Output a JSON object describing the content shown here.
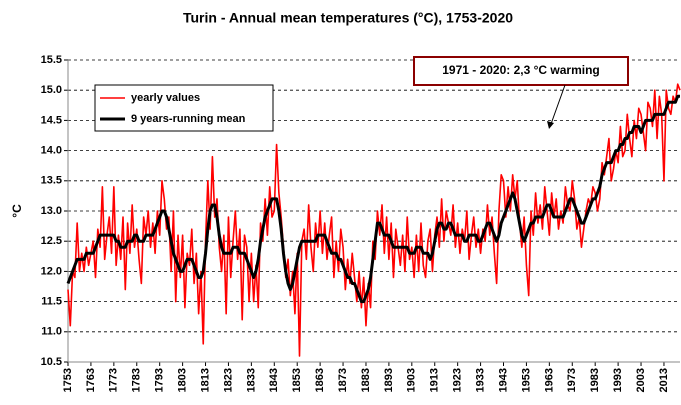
{
  "chart_data": {
    "type": "line",
    "title": "Turin - Annual mean temperatures (°C), 1753-2020",
    "y_label": "°C",
    "annotation": "1971 - 2020: 2,3 °C warming",
    "legend": "top-left",
    "grid": true,
    "xlim": [
      1753,
      2020
    ],
    "ylim": [
      10.5,
      15.5
    ],
    "xticks": [
      1753,
      1763,
      1773,
      1783,
      1793,
      1803,
      1813,
      1823,
      1833,
      1843,
      1853,
      1863,
      1873,
      1883,
      1893,
      1903,
      1913,
      1923,
      1933,
      1943,
      1953,
      1963,
      1973,
      1983,
      1993,
      2003,
      2013
    ],
    "yticks": [
      10.5,
      {
        "value": 11,
        "label": "11.0"
      },
      11.5,
      {
        "value": 12,
        "label": "12.0"
      },
      12.5,
      {
        "value": 13,
        "label": "13.0"
      },
      13.5,
      {
        "value": 14,
        "label": "14.0"
      },
      14.5,
      {
        "value": 15,
        "label": "15.0"
      },
      15.5
    ],
    "x": [
      1753,
      1754,
      1755,
      1756,
      1757,
      1758,
      1759,
      1760,
      1761,
      1762,
      1763,
      1764,
      1765,
      1766,
      1767,
      1768,
      1769,
      1770,
      1771,
      1772,
      1773,
      1774,
      1775,
      1776,
      1777,
      1778,
      1779,
      1780,
      1781,
      1782,
      1783,
      1784,
      1785,
      1786,
      1787,
      1788,
      1789,
      1790,
      1791,
      1792,
      1793,
      1794,
      1795,
      1796,
      1797,
      1798,
      1799,
      1800,
      1801,
      1802,
      1803,
      1804,
      1805,
      1806,
      1807,
      1808,
      1809,
      1810,
      1811,
      1812,
      1813,
      1814,
      1815,
      1816,
      1817,
      1818,
      1819,
      1820,
      1821,
      1822,
      1823,
      1824,
      1825,
      1826,
      1827,
      1828,
      1829,
      1830,
      1831,
      1832,
      1833,
      1834,
      1835,
      1836,
      1837,
      1838,
      1839,
      1840,
      1841,
      1842,
      1843,
      1844,
      1845,
      1846,
      1847,
      1848,
      1849,
      1850,
      1851,
      1852,
      1853,
      1854,
      1855,
      1856,
      1857,
      1858,
      1859,
      1860,
      1861,
      1862,
      1863,
      1864,
      1865,
      1866,
      1867,
      1868,
      1869,
      1870,
      1871,
      1872,
      1873,
      1874,
      1875,
      1876,
      1877,
      1878,
      1879,
      1880,
      1881,
      1882,
      1883,
      1884,
      1885,
      1886,
      1887,
      1888,
      1889,
      1890,
      1891,
      1892,
      1893,
      1894,
      1895,
      1896,
      1897,
      1898,
      1899,
      1900,
      1901,
      1902,
      1903,
      1904,
      1905,
      1906,
      1907,
      1908,
      1909,
      1910,
      1911,
      1912,
      1913,
      1914,
      1915,
      1916,
      1917,
      1918,
      1919,
      1920,
      1921,
      1922,
      1923,
      1924,
      1925,
      1926,
      1927,
      1928,
      1929,
      1930,
      1931,
      1932,
      1933,
      1934,
      1935,
      1936,
      1937,
      1938,
      1939,
      1940,
      1941,
      1942,
      1943,
      1944,
      1945,
      1946,
      1947,
      1948,
      1949,
      1950,
      1951,
      1952,
      1953,
      1954,
      1955,
      1956,
      1957,
      1958,
      1959,
      1960,
      1961,
      1962,
      1963,
      1964,
      1965,
      1966,
      1967,
      1968,
      1969,
      1970,
      1971,
      1972,
      1973,
      1974,
      1975,
      1976,
      1977,
      1978,
      1979,
      1980,
      1981,
      1982,
      1983,
      1984,
      1985,
      1986,
      1987,
      1988,
      1989,
      1990,
      1991,
      1992,
      1993,
      1994,
      1995,
      1996,
      1997,
      1998,
      1999,
      2000,
      2001,
      2002,
      2003,
      2004,
      2005,
      2006,
      2007,
      2008,
      2009,
      2010,
      2011,
      2012,
      2013,
      2014,
      2015,
      2016,
      2017,
      2018,
      2019,
      2020
    ],
    "series": [
      {
        "name": "yearly values",
        "color": "#ff0000",
        "width": 1.6,
        "values": [
          11.7,
          11.1,
          12.0,
          11.9,
          12.8,
          12.0,
          12.3,
          12.0,
          12.4,
          12.1,
          12.3,
          12.5,
          11.9,
          12.7,
          12.4,
          13.4,
          12.2,
          12.6,
          12.9,
          12.3,
          13.4,
          12.1,
          12.6,
          12.2,
          12.9,
          11.7,
          12.8,
          12.3,
          13.1,
          12.4,
          12.7,
          12.2,
          11.8,
          12.9,
          12.6,
          13.0,
          12.4,
          12.8,
          12.3,
          13.0,
          12.6,
          13.5,
          13.2,
          12.7,
          12.9,
          12.0,
          13.0,
          11.5,
          12.6,
          11.9,
          12.6,
          11.4,
          12.3,
          12.1,
          12.7,
          11.8,
          12.3,
          11.3,
          12.0,
          10.8,
          12.5,
          13.5,
          12.7,
          13.9,
          12.9,
          13.2,
          12.4,
          12.0,
          12.6,
          11.3,
          12.9,
          11.9,
          12.5,
          13.0,
          12.2,
          12.7,
          11.2,
          12.6,
          12.4,
          11.5,
          12.3,
          11.5,
          12.1,
          11.4,
          12.8,
          12.5,
          13.2,
          12.6,
          13.4,
          12.9,
          13.0,
          14.1,
          13.3,
          12.9,
          12.4,
          11.9,
          12.2,
          11.6,
          12.0,
          11.3,
          12.3,
          10.6,
          12.5,
          12.7,
          12.2,
          13.1,
          12.4,
          12.0,
          12.8,
          12.4,
          13.0,
          12.3,
          12.8,
          12.2,
          12.6,
          12.9,
          11.9,
          12.5,
          12.0,
          12.7,
          12.4,
          11.7,
          12.2,
          11.8,
          12.3,
          11.9,
          11.5,
          12.0,
          11.4,
          11.9,
          11.1,
          11.8,
          11.4,
          12.5,
          12.2,
          13.0,
          12.6,
          13.1,
          12.3,
          12.9,
          12.2,
          12.8,
          11.9,
          12.7,
          12.4,
          12.1,
          12.6,
          12.0,
          12.9,
          12.2,
          12.4,
          11.9,
          12.6,
          12.0,
          12.8,
          12.1,
          11.9,
          12.5,
          12.7,
          12.0,
          12.6,
          12.9,
          12.4,
          13.2,
          12.5,
          13.0,
          12.8,
          12.6,
          13.1,
          12.4,
          12.8,
          12.3,
          12.7,
          12.5,
          13.0,
          12.2,
          12.6,
          12.9,
          12.4,
          12.7,
          12.3,
          12.7,
          12.5,
          13.1,
          12.6,
          12.9,
          12.3,
          11.8,
          13.0,
          13.6,
          13.5,
          12.9,
          13.4,
          13.0,
          13.6,
          13.2,
          13.5,
          12.8,
          12.4,
          12.9,
          12.1,
          11.6,
          13.0,
          12.6,
          13.3,
          12.8,
          13.1,
          12.7,
          13.4,
          13.0,
          12.6,
          13.3,
          12.9,
          13.2,
          12.7,
          13.0,
          12.8,
          13.4,
          13.1,
          13.0,
          13.5,
          13.2,
          12.7,
          12.9,
          12.4,
          12.7,
          13.0,
          13.2,
          13.1,
          13.4,
          13.3,
          13.0,
          13.2,
          13.8,
          13.6,
          13.9,
          14.2,
          13.5,
          13.7,
          14.0,
          13.8,
          14.4,
          13.9,
          14.0,
          14.6,
          14.2,
          13.9,
          14.5,
          14.2,
          14.7,
          14.6,
          14.3,
          14.0,
          14.8,
          14.7,
          14.4,
          15.0,
          14.2,
          14.9,
          14.6,
          13.5,
          15.0,
          14.7,
          14.6,
          14.9,
          14.8,
          15.1,
          15.0
        ]
      },
      {
        "name": "9 years-running mean",
        "color": "#000000",
        "width": 3,
        "values": [
          11.8,
          11.9,
          12.0,
          12.1,
          12.2,
          12.2,
          12.2,
          12.2,
          12.3,
          12.3,
          12.3,
          12.3,
          12.4,
          12.5,
          12.6,
          12.6,
          12.6,
          12.6,
          12.6,
          12.6,
          12.6,
          12.5,
          12.5,
          12.4,
          12.4,
          12.4,
          12.5,
          12.5,
          12.5,
          12.6,
          12.6,
          12.5,
          12.5,
          12.5,
          12.6,
          12.6,
          12.6,
          12.6,
          12.7,
          12.8,
          12.9,
          13.0,
          13.0,
          12.9,
          12.7,
          12.5,
          12.3,
          12.2,
          12.1,
          12.0,
          12.0,
          12.1,
          12.2,
          12.2,
          12.2,
          12.1,
          12.0,
          11.9,
          11.9,
          12.0,
          12.3,
          12.7,
          13.0,
          13.1,
          13.1,
          12.9,
          12.6,
          12.4,
          12.3,
          12.3,
          12.3,
          12.3,
          12.4,
          12.4,
          12.4,
          12.3,
          12.3,
          12.3,
          12.2,
          12.1,
          12.0,
          11.9,
          12.0,
          12.2,
          12.5,
          12.7,
          12.9,
          13.0,
          13.1,
          13.2,
          13.2,
          13.2,
          13.0,
          12.7,
          12.3,
          12.0,
          11.8,
          11.7,
          11.8,
          12.0,
          12.2,
          12.4,
          12.5,
          12.5,
          12.5,
          12.5,
          12.5,
          12.5,
          12.5,
          12.6,
          12.6,
          12.6,
          12.6,
          12.5,
          12.4,
          12.3,
          12.3,
          12.3,
          12.2,
          12.2,
          12.1,
          12.0,
          11.9,
          11.9,
          11.8,
          11.8,
          11.7,
          11.6,
          11.5,
          11.5,
          11.6,
          11.7,
          11.9,
          12.2,
          12.5,
          12.8,
          12.8,
          12.7,
          12.6,
          12.6,
          12.6,
          12.5,
          12.4,
          12.4,
          12.4,
          12.4,
          12.4,
          12.4,
          12.4,
          12.3,
          12.3,
          12.3,
          12.4,
          12.4,
          12.4,
          12.3,
          12.3,
          12.3,
          12.2,
          12.3,
          12.5,
          12.7,
          12.8,
          12.8,
          12.7,
          12.7,
          12.8,
          12.8,
          12.7,
          12.6,
          12.6,
          12.6,
          12.6,
          12.5,
          12.5,
          12.6,
          12.6,
          12.6,
          12.6,
          12.5,
          12.5,
          12.6,
          12.7,
          12.8,
          12.8,
          12.7,
          12.6,
          12.5,
          12.6,
          12.8,
          12.9,
          13.0,
          13.1,
          13.2,
          13.3,
          13.2,
          13.0,
          12.8,
          12.6,
          12.5,
          12.6,
          12.7,
          12.8,
          12.8,
          12.9,
          12.9,
          12.9,
          12.9,
          13.0,
          13.1,
          13.1,
          13.0,
          12.9,
          12.9,
          12.9,
          12.9,
          12.9,
          13.0,
          13.1,
          13.2,
          13.2,
          13.1,
          13.0,
          12.9,
          12.8,
          12.8,
          12.9,
          13.0,
          13.1,
          13.2,
          13.2,
          13.3,
          13.4,
          13.6,
          13.7,
          13.8,
          13.8,
          13.8,
          13.9,
          14.0,
          14.0,
          14.1,
          14.1,
          14.2,
          14.2,
          14.3,
          14.3,
          14.4,
          14.4,
          14.4,
          14.3,
          14.4,
          14.5,
          14.5,
          14.5,
          14.5,
          14.6,
          14.6,
          14.6,
          14.6,
          14.6,
          14.7,
          14.8,
          14.8,
          14.8,
          14.8,
          14.9,
          14.9
        ]
      }
    ]
  }
}
